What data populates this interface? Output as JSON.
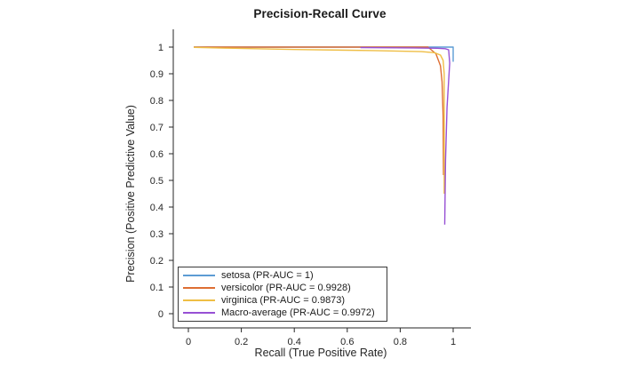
{
  "figure": {
    "background": "#ffffff",
    "axis_color": "#262626",
    "tick_label_color": "#262626",
    "legend_border_color": "#3a3a3a"
  },
  "chart_data": {
    "type": "line",
    "title": "Precision-Recall Curve",
    "xlabel": "Recall (True Positive Rate)",
    "ylabel": "Precision (Positive Predictive Value)",
    "xlim": [
      -0.07,
      1.07
    ],
    "ylim": [
      -0.05,
      1.07
    ],
    "grid": false,
    "box": false,
    "tick_direction": "out",
    "legend_position": "inside-bottom-left",
    "x_ticks": [
      0,
      0.2,
      0.4,
      0.6,
      0.8,
      1
    ],
    "x_tick_labels": [
      "0",
      "0.2",
      "0.4",
      "0.6",
      "0.8",
      "1"
    ],
    "y_ticks": [
      0,
      0.1,
      0.2,
      0.3,
      0.4,
      0.5,
      0.6,
      0.7,
      0.8,
      0.9,
      1
    ],
    "y_tick_labels": [
      "0",
      "0.1",
      "0.2",
      "0.3",
      "0.4",
      "0.5",
      "0.6",
      "0.7",
      "0.8",
      "0.9",
      "1"
    ],
    "series": [
      {
        "name": "setosa",
        "label": "setosa (PR-AUC = 1)",
        "pr_auc": "1",
        "color": "#5C9CD4",
        "points": [
          [
            0.02,
            1.0
          ],
          [
            1.0,
            1.0
          ],
          [
            1.0,
            0.945
          ]
        ]
      },
      {
        "name": "versicolor",
        "label": "versicolor (PR-AUC = 0.9928)",
        "pr_auc": "0.9928",
        "color": "#DE6E33",
        "points": [
          [
            0.02,
            1.0
          ],
          [
            0.905,
            1.0
          ],
          [
            0.935,
            0.975
          ],
          [
            0.952,
            0.93
          ],
          [
            0.958,
            0.87
          ],
          [
            0.962,
            0.74
          ],
          [
            0.9635,
            0.52
          ]
        ]
      },
      {
        "name": "virginica",
        "label": "virginica (PR-AUC = 0.9873)",
        "pr_auc": "0.9873",
        "color": "#EFBE45",
        "points": [
          [
            0.02,
            0.999
          ],
          [
            0.15,
            0.996
          ],
          [
            0.4,
            0.991
          ],
          [
            0.7,
            0.987
          ],
          [
            0.88,
            0.983
          ],
          [
            0.93,
            0.979
          ],
          [
            0.952,
            0.97
          ],
          [
            0.962,
            0.95
          ],
          [
            0.966,
            0.9
          ],
          [
            0.966,
            0.45
          ]
        ]
      },
      {
        "name": "macro_average",
        "label": "Macro-average (PR-AUC = 0.9972)",
        "pr_auc": "0.9972",
        "color": "#9750D4",
        "points": [
          [
            0.65,
            0.998
          ],
          [
            0.85,
            0.997
          ],
          [
            0.94,
            0.9955
          ],
          [
            0.97,
            0.994
          ],
          [
            0.983,
            0.99
          ],
          [
            0.987,
            0.94
          ],
          [
            0.977,
            0.775
          ],
          [
            0.971,
            0.576
          ],
          [
            0.968,
            0.334
          ]
        ]
      }
    ]
  }
}
